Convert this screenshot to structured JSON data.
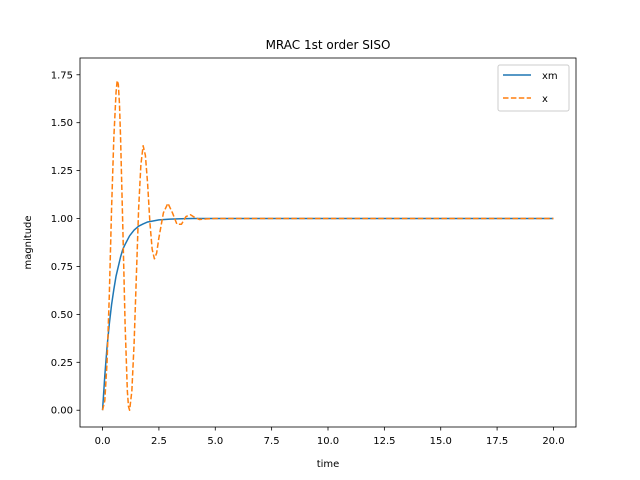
{
  "chart_data": {
    "type": "line",
    "title": "MRAC 1st order SISO",
    "xlabel": "time",
    "ylabel": "magnitude",
    "xlim": [
      -1.0,
      21.0
    ],
    "ylim": [
      -0.0875,
      1.8375
    ],
    "xticks": [
      0.0,
      2.5,
      5.0,
      7.5,
      10.0,
      12.5,
      15.0,
      17.5,
      20.0
    ],
    "xtick_labels": [
      "0.0",
      "2.5",
      "5.0",
      "7.5",
      "10.0",
      "12.5",
      "15.0",
      "17.5",
      "20.0"
    ],
    "yticks": [
      0.0,
      0.25,
      0.5,
      0.75,
      1.0,
      1.25,
      1.5,
      1.75
    ],
    "ytick_labels": [
      "0.00",
      "0.25",
      "0.50",
      "0.75",
      "1.00",
      "1.25",
      "1.50",
      "1.75"
    ],
    "grid": false,
    "legend_position": "top-right",
    "series": [
      {
        "name": "xm",
        "color": "#1f77b4",
        "style": "solid",
        "x": [
          0,
          0.1,
          0.2,
          0.3,
          0.4,
          0.5,
          0.6,
          0.7,
          0.8,
          0.9,
          1.0,
          1.2,
          1.4,
          1.6,
          1.8,
          2.0,
          2.5,
          3.0,
          3.5,
          4.0,
          5.0,
          6.0,
          8.0,
          10.0,
          12.0,
          14.0,
          16.0,
          18.0,
          20.0
        ],
        "y": [
          0.0,
          0.18,
          0.33,
          0.45,
          0.55,
          0.63,
          0.7,
          0.75,
          0.8,
          0.84,
          0.865,
          0.91,
          0.94,
          0.96,
          0.972,
          0.982,
          0.993,
          0.997,
          0.999,
          1.0,
          1.0,
          1.0,
          1.0,
          1.0,
          1.0,
          1.0,
          1.0,
          1.0,
          1.0
        ]
      },
      {
        "name": "x",
        "color": "#ff7f0e",
        "style": "dashed",
        "x": [
          0,
          0.1,
          0.2,
          0.3,
          0.4,
          0.5,
          0.6,
          0.65,
          0.7,
          0.75,
          0.8,
          0.9,
          1.0,
          1.1,
          1.15,
          1.2,
          1.3,
          1.4,
          1.5,
          1.6,
          1.7,
          1.8,
          1.9,
          2.0,
          2.1,
          2.2,
          2.3,
          2.4,
          2.5,
          2.7,
          2.9,
          3.1,
          3.3,
          3.5,
          3.7,
          3.9,
          4.1,
          4.3,
          4.6,
          5.0,
          6.0,
          8.0,
          10.0,
          12.0,
          14.0,
          16.0,
          18.0,
          20.0
        ],
        "y": [
          0.0,
          0.05,
          0.25,
          0.6,
          1.05,
          1.42,
          1.66,
          1.72,
          1.7,
          1.6,
          1.42,
          0.95,
          0.45,
          0.1,
          0.02,
          0.0,
          0.1,
          0.35,
          0.7,
          1.05,
          1.28,
          1.38,
          1.33,
          1.18,
          0.98,
          0.84,
          0.79,
          0.82,
          0.9,
          1.03,
          1.08,
          1.03,
          0.97,
          0.97,
          1.01,
          1.02,
          1.005,
          0.995,
          0.998,
          1.0,
          1.0,
          1.0,
          1.0,
          1.0,
          1.0,
          1.0,
          1.0,
          1.0
        ]
      }
    ]
  }
}
